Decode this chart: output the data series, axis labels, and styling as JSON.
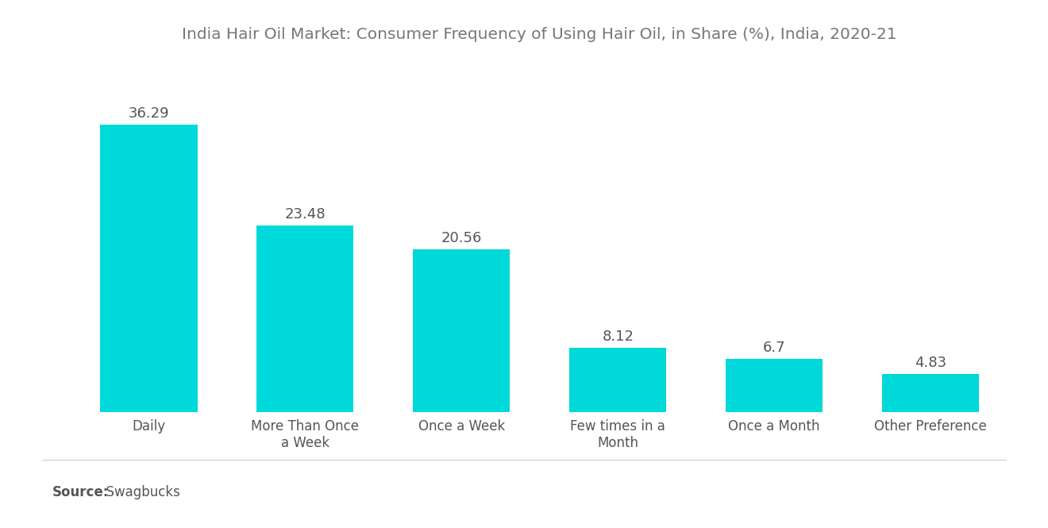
{
  "title": "India Hair Oil Market: Consumer Frequency of Using Hair Oil, in Share (%), India, 2020-21",
  "categories": [
    "Daily",
    "More Than Once\na Week",
    "Once a Week",
    "Few times in a\nMonth",
    "Once a Month",
    "Other Preference"
  ],
  "values": [
    36.29,
    23.48,
    20.56,
    8.12,
    6.7,
    4.83
  ],
  "bar_color": "#00D9D9",
  "label_color": "#555555",
  "title_color": "#777777",
  "background_color": "#ffffff",
  "source_bold": "Source:",
  "source_normal": "  Swagbucks",
  "ylim": [
    0,
    44
  ],
  "title_fontsize": 14.5,
  "value_fontsize": 13,
  "source_fontsize": 12,
  "xtick_fontsize": 12,
  "bar_width": 0.62,
  "xlim_left": -0.55,
  "xlim_right": 5.55
}
